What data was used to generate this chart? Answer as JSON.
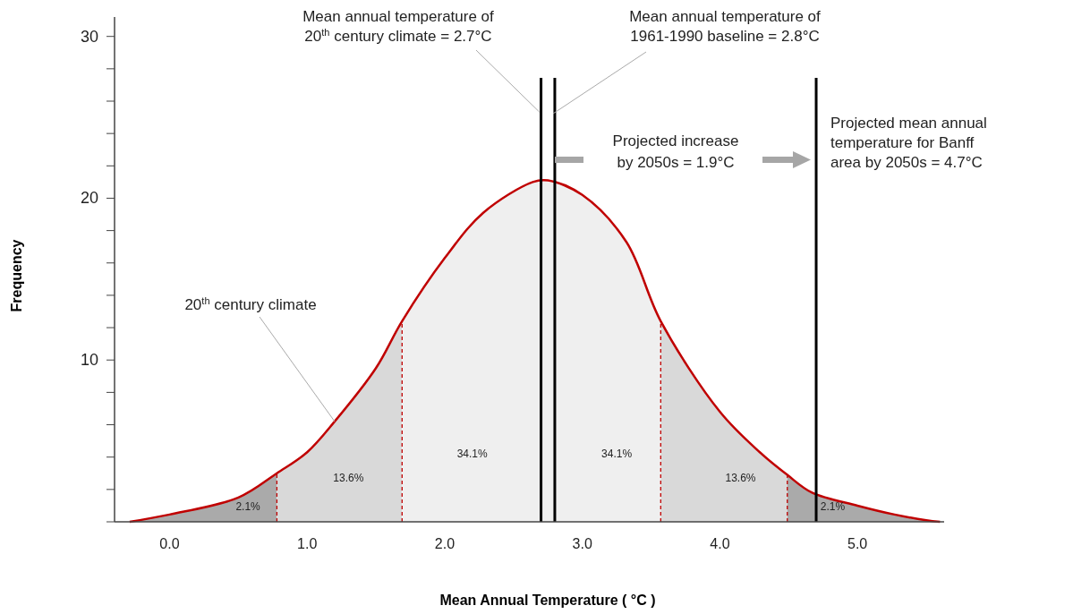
{
  "chart_data": {
    "type": "area",
    "xlabel": "Mean Annual Temperature ( °C )",
    "ylabel": "Frequency",
    "xlim": [
      -0.4,
      5.63
    ],
    "ylim": [
      0,
      31.2
    ],
    "xticks": [
      {
        "value": 0,
        "label": "0.0"
      },
      {
        "value": 1,
        "label": "1.0"
      },
      {
        "value": 2,
        "label": "2.0"
      },
      {
        "value": 3,
        "label": "3.0"
      },
      {
        "value": 4,
        "label": "4.0"
      },
      {
        "value": 5,
        "label": "5.0"
      }
    ],
    "yticks": [
      {
        "value": 0,
        "label": null
      },
      {
        "value": 2,
        "label": null
      },
      {
        "value": 4,
        "label": null
      },
      {
        "value": 6,
        "label": null
      },
      {
        "value": 8,
        "label": null
      },
      10,
      {
        "value": 12,
        "label": null
      },
      {
        "value": 14,
        "label": null
      },
      {
        "value": 16,
        "label": null
      },
      {
        "value": 18,
        "label": null
      },
      20,
      {
        "value": 22,
        "label": null
      },
      {
        "value": 24,
        "label": null
      },
      {
        "value": 26,
        "label": null
      },
      {
        "value": 28,
        "label": null
      },
      30
    ],
    "series": [
      {
        "color": "#aaaaaa",
        "x": [
          -0.29,
          0,
          0.5,
          0.78
        ],
        "values": [
          0,
          0.45,
          1.5,
          3.0
        ]
      },
      {
        "color": "#d9d9d9",
        "x": [
          0.78,
          1.0,
          1.2,
          1.5,
          1.69
        ],
        "values": [
          3.0,
          4.3,
          6.2,
          9.5,
          12.4
        ]
      },
      {
        "color": "#efefef",
        "x": [
          1.69,
          2.0,
          2.28,
          2.64,
          2.75,
          3.0,
          3.32,
          3.57
        ],
        "values": [
          12.4,
          16.3,
          19.1,
          21.0,
          21.1,
          20.2,
          17.3,
          12.4
        ]
      },
      {
        "color": "#d9d9d9",
        "x": [
          3.57,
          4.0,
          4.29,
          4.49
        ],
        "values": [
          12.4,
          6.8,
          4.3,
          2.9
        ]
      },
      {
        "color": "#aaaaaa",
        "x": [
          4.49,
          4.67,
          5.0,
          5.27,
          5.5,
          5.6
        ],
        "values": [
          2.9,
          1.8,
          1.0,
          0.45,
          0.1,
          0
        ]
      },
      {
        "type": "line",
        "color": "#c00000",
        "x": [
          -0.29,
          0,
          0.5,
          0.78,
          1.0,
          1.2,
          1.5,
          1.69,
          2.0,
          2.28,
          2.64,
          2.75,
          3.0,
          3.32,
          3.57,
          4.0,
          4.29,
          4.49,
          4.67,
          5.0,
          5.27,
          5.5,
          5.6
        ],
        "values": [
          0,
          0.45,
          1.5,
          3.0,
          4.3,
          6.2,
          9.5,
          12.4,
          16.3,
          19.1,
          21.0,
          21.1,
          20.2,
          17.3,
          12.4,
          6.8,
          4.3,
          2.9,
          1.8,
          1.0,
          0.45,
          0.1,
          0
        ]
      }
    ],
    "ref_lines": [
      {
        "axis": "x",
        "value": 2.7,
        "label": "Mean annual temperature of\n20$^{th}$ century climate = 2.7°C",
        "color": "#000000"
      },
      {
        "axis": "x",
        "value": 2.8,
        "label": "Mean annual temperature of\n1961-1990 baseline = 2.8°C",
        "color": "#000000"
      },
      {
        "axis": "x",
        "value": 4.7,
        "label": "Projected mean annual\ntemperature for Banff\narea by 2050s = 4.7°C",
        "color": "#000000"
      },
      {
        "axis": "x",
        "value": 0.78,
        "color": "#c00000",
        "line_style": "dashed"
      },
      {
        "axis": "x",
        "value": 1.69,
        "color": "#c00000",
        "line_style": "dashed"
      },
      {
        "axis": "x",
        "value": 3.57,
        "color": "#c00000",
        "line_style": "dashed"
      },
      {
        "axis": "x",
        "value": 4.49,
        "color": "#c00000",
        "line_style": "dashed"
      }
    ],
    "annotations": [
      "2.1%",
      "13.6%",
      "34.1%",
      "34.1%",
      "13.6%",
      "2.1%",
      {
        "text": "20$^{th}$ century climate",
        "x": 1.2,
        "y": 6.2
      },
      "Projected increase\nby 2050s = 1.9°C"
    ]
  }
}
